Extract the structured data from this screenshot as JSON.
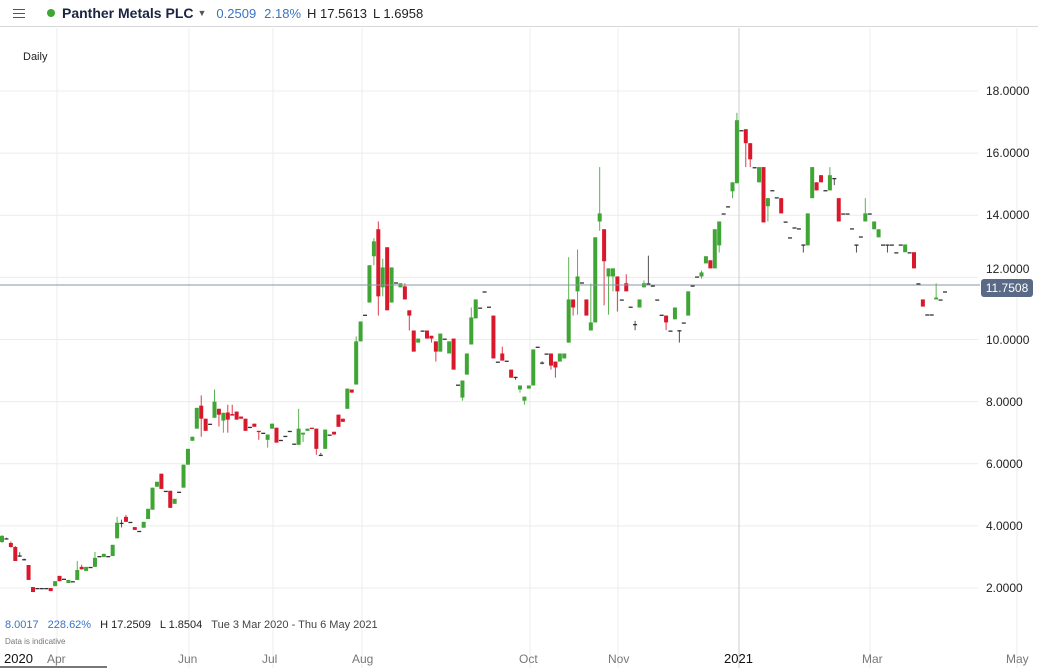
{
  "header": {
    "menu_icon": "hamburger-icon",
    "status_color": "#3fa535",
    "instrument": "Panther Metals PLC",
    "change": "0.2509",
    "change_pct": "2.18%",
    "high": "H 17.5613",
    "low": "L 1.6958"
  },
  "period": "Daily",
  "current_price": "11.7508",
  "footer": {
    "change": "8.0017",
    "change_pct": "228.62%",
    "high": "H 17.2509",
    "low": "L 1.8504",
    "range": "Tue 3 Mar 2020 - Thu 6 May 2021",
    "note": "Data is indicative"
  },
  "x_axis": [
    "2020",
    "Apr",
    "Jun",
    "Jul",
    "Aug",
    "Oct",
    "Nov",
    "2021",
    "Mar",
    "May"
  ],
  "y_axis": [
    "18.0000",
    "16.0000",
    "14.0000",
    "12.0000",
    "10.0000",
    "8.0000",
    "6.0000",
    "4.0000",
    "2.0000"
  ],
  "chart_data": {
    "type": "candlestick",
    "title": "",
    "ylim": [
      2,
      18
    ],
    "x_range": [
      "2020-03-03",
      "2021-05-06"
    ],
    "grid": true,
    "current_price": 11.7508,
    "colors": {
      "up": "#3fa535",
      "down": "#d9182c",
      "flat": "#333333",
      "price_line": "#8a96a8"
    },
    "candles_ohlc": [
      [
        3.48,
        3.7,
        3.45,
        3.68
      ],
      [
        3.6,
        3.62,
        3.58,
        3.6
      ],
      [
        3.45,
        3.5,
        3.3,
        3.32
      ],
      [
        3.32,
        3.35,
        2.87,
        2.87
      ],
      [
        3.05,
        3.15,
        3.0,
        3.05
      ],
      [
        2.93,
        2.95,
        2.9,
        2.93
      ],
      [
        2.74,
        2.74,
        2.26,
        2.26
      ],
      [
        2.03,
        2.03,
        1.87,
        1.87
      ],
      [
        2.0,
        2.0,
        2.0,
        2.0
      ],
      [
        2.0,
        2.0,
        2.0,
        2.0
      ],
      [
        2.0,
        2.0,
        2.0,
        2.0
      ],
      [
        2.0,
        2.0,
        1.9,
        1.9
      ],
      [
        2.06,
        2.22,
        2.06,
        2.22
      ],
      [
        2.39,
        2.39,
        2.22,
        2.22
      ],
      [
        2.3,
        2.3,
        2.3,
        2.3
      ],
      [
        2.16,
        2.26,
        2.16,
        2.26
      ],
      [
        2.22,
        2.22,
        2.22,
        2.22
      ],
      [
        2.26,
        2.87,
        2.26,
        2.58
      ],
      [
        2.68,
        2.75,
        2.6,
        2.6
      ],
      [
        2.55,
        2.68,
        2.55,
        2.68
      ],
      [
        2.68,
        2.68,
        2.68,
        2.68
      ],
      [
        2.68,
        3.16,
        2.68,
        2.97
      ],
      [
        3.03,
        3.03,
        3.03,
        3.03
      ],
      [
        3.0,
        3.1,
        3.0,
        3.1
      ],
      [
        3.03,
        3.03,
        3.03,
        3.03
      ],
      [
        3.03,
        3.39,
        3.03,
        3.39
      ],
      [
        3.6,
        4.29,
        3.6,
        4.1
      ],
      [
        4.1,
        4.2,
        3.95,
        4.1
      ],
      [
        4.29,
        4.35,
        4.13,
        4.13
      ],
      [
        4.13,
        4.13,
        4.13,
        4.13
      ],
      [
        3.96,
        3.96,
        3.87,
        3.87
      ],
      [
        3.84,
        3.84,
        3.84,
        3.84
      ],
      [
        3.94,
        4.13,
        3.94,
        4.13
      ],
      [
        4.22,
        4.55,
        4.22,
        4.55
      ],
      [
        4.52,
        5.23,
        4.52,
        5.23
      ],
      [
        5.26,
        5.42,
        5.26,
        5.42
      ],
      [
        5.68,
        5.68,
        5.19,
        5.19
      ],
      [
        5.13,
        5.13,
        5.13,
        5.13
      ],
      [
        5.13,
        5.13,
        4.58,
        4.58
      ],
      [
        4.71,
        4.87,
        4.71,
        4.87
      ],
      [
        5.1,
        5.1,
        5.1,
        5.1
      ],
      [
        5.23,
        5.97,
        5.23,
        5.97
      ],
      [
        5.97,
        6.48,
        5.97,
        6.48
      ],
      [
        6.74,
        6.87,
        6.74,
        6.87
      ],
      [
        7.13,
        7.8,
        7.13,
        7.8
      ],
      [
        7.87,
        8.2,
        6.87,
        7.45
      ],
      [
        7.45,
        7.45,
        7.06,
        7.06
      ],
      [
        7.29,
        7.29,
        7.29,
        7.29
      ],
      [
        7.48,
        8.39,
        7.48,
        8.0
      ],
      [
        7.77,
        7.77,
        7.2,
        7.58
      ],
      [
        7.39,
        7.64,
        7.0,
        7.64
      ],
      [
        7.65,
        7.9,
        7.0,
        7.42
      ],
      [
        7.6,
        7.9,
        7.55,
        7.55
      ],
      [
        7.68,
        7.68,
        7.42,
        7.42
      ],
      [
        7.52,
        7.52,
        7.45,
        7.45
      ],
      [
        7.45,
        7.45,
        7.06,
        7.06
      ],
      [
        7.19,
        7.19,
        7.19,
        7.19
      ],
      [
        7.29,
        7.29,
        7.19,
        7.19
      ],
      [
        7.06,
        7.06,
        6.77,
        7.03
      ],
      [
        7.0,
        7.0,
        7.0,
        7.0
      ],
      [
        6.77,
        6.94,
        6.52,
        6.94
      ],
      [
        7.13,
        7.29,
        7.13,
        7.29
      ],
      [
        7.16,
        7.16,
        6.68,
        6.68
      ],
      [
        6.77,
        6.77,
        6.77,
        6.77
      ],
      [
        6.9,
        6.9,
        6.9,
        6.9
      ],
      [
        7.06,
        7.06,
        7.06,
        7.06
      ],
      [
        6.65,
        6.65,
        6.65,
        6.65
      ],
      [
        6.61,
        7.77,
        6.61,
        7.13
      ],
      [
        6.94,
        7.0,
        6.7,
        7.0
      ],
      [
        7.06,
        7.13,
        7.06,
        7.13
      ],
      [
        7.16,
        7.16,
        7.13,
        7.13
      ],
      [
        7.13,
        7.13,
        6.29,
        6.48
      ],
      [
        6.29,
        6.35,
        6.29,
        6.29
      ],
      [
        6.48,
        7.1,
        6.48,
        7.1
      ],
      [
        6.94,
        6.94,
        6.94,
        6.94
      ],
      [
        7.03,
        7.03,
        6.94,
        6.94
      ],
      [
        7.58,
        7.58,
        7.19,
        7.19
      ],
      [
        7.45,
        7.45,
        7.35,
        7.35
      ],
      [
        7.77,
        8.42,
        7.77,
        8.42
      ],
      [
        8.39,
        8.39,
        8.29,
        8.29
      ],
      [
        8.55,
        10.1,
        8.55,
        9.94
      ],
      [
        9.94,
        10.58,
        9.94,
        10.58
      ],
      [
        10.8,
        10.8,
        10.8,
        10.8
      ],
      [
        11.19,
        12.39,
        11.19,
        12.39
      ],
      [
        12.68,
        13.26,
        12.39,
        13.16
      ],
      [
        13.55,
        13.8,
        10.77,
        11.39
      ],
      [
        11.68,
        12.6,
        11.39,
        12.32
      ],
      [
        12.97,
        12.97,
        10.94,
        10.94
      ],
      [
        11.19,
        12.32,
        11.19,
        12.32
      ],
      [
        11.84,
        11.84,
        11.84,
        11.84
      ],
      [
        11.68,
        11.81,
        11.68,
        11.81
      ],
      [
        11.71,
        11.81,
        11.29,
        11.29
      ],
      [
        10.94,
        10.94,
        10.29,
        10.77
      ],
      [
        10.29,
        10.29,
        9.61,
        9.61
      ],
      [
        9.9,
        10.03,
        9.9,
        10.03
      ],
      [
        10.29,
        10.29,
        10.29,
        10.29
      ],
      [
        10.29,
        10.29,
        10.03,
        10.03
      ],
      [
        10.12,
        10.12,
        9.9,
        10.03
      ],
      [
        9.94,
        9.94,
        9.29,
        9.61
      ],
      [
        9.61,
        10.19,
        9.61,
        10.19
      ],
      [
        10.03,
        10.03,
        10.03,
        10.03
      ],
      [
        9.55,
        9.94,
        9.55,
        9.94
      ],
      [
        10.03,
        10.03,
        9.03,
        9.03
      ],
      [
        8.55,
        8.55,
        8.55,
        8.55
      ],
      [
        8.13,
        8.68,
        8.03,
        8.68
      ],
      [
        8.87,
        9.55,
        8.87,
        9.55
      ],
      [
        9.84,
        11.03,
        9.84,
        10.71
      ],
      [
        10.68,
        11.29,
        10.68,
        11.29
      ],
      [
        11.03,
        11.03,
        11.03,
        11.03
      ],
      [
        11.55,
        11.55,
        11.55,
        11.55
      ],
      [
        11.06,
        11.06,
        11.06,
        11.06
      ],
      [
        10.77,
        10.77,
        9.39,
        9.39
      ],
      [
        9.29,
        9.29,
        9.29,
        9.29
      ],
      [
        9.55,
        9.77,
        9.32,
        9.32
      ],
      [
        9.32,
        9.32,
        9.32,
        9.32
      ],
      [
        9.03,
        9.03,
        8.77,
        8.77
      ],
      [
        8.8,
        8.8,
        8.7,
        8.8
      ],
      [
        8.39,
        8.52,
        8.29,
        8.52
      ],
      [
        8.03,
        8.16,
        7.9,
        8.16
      ],
      [
        8.42,
        8.52,
        8.42,
        8.52
      ],
      [
        8.52,
        9.68,
        8.52,
        9.68
      ],
      [
        9.77,
        9.77,
        9.77,
        9.77
      ],
      [
        9.26,
        9.3,
        9.2,
        9.26
      ],
      [
        9.55,
        9.55,
        9.55,
        9.55
      ],
      [
        9.55,
        9.55,
        9.03,
        9.16
      ],
      [
        9.29,
        9.29,
        8.77,
        9.1
      ],
      [
        9.29,
        9.55,
        9.29,
        9.55
      ],
      [
        9.39,
        9.55,
        9.39,
        9.55
      ],
      [
        9.9,
        12.65,
        9.9,
        11.29
      ],
      [
        11.29,
        11.29,
        10.77,
        11.03
      ],
      [
        11.55,
        12.9,
        10.8,
        12.03
      ],
      [
        11.84,
        11.84,
        11.84,
        11.84
      ],
      [
        11.29,
        11.29,
        10.77,
        10.77
      ],
      [
        10.29,
        11.8,
        10.29,
        10.55
      ],
      [
        10.55,
        13.29,
        10.55,
        13.29
      ],
      [
        13.8,
        15.55,
        13.5,
        14.06
      ],
      [
        13.55,
        13.55,
        11.1,
        12.52
      ],
      [
        12.03,
        12.29,
        10.8,
        12.29
      ],
      [
        12.03,
        12.29,
        11.55,
        12.29
      ],
      [
        12.03,
        12.03,
        10.9,
        11.55
      ],
      [
        11.29,
        11.29,
        11.29,
        11.29
      ],
      [
        11.81,
        12.1,
        11.55,
        11.55
      ],
      [
        11.06,
        11.06,
        11.06,
        11.06
      ],
      [
        10.5,
        10.6,
        10.3,
        10.5
      ],
      [
        11.03,
        11.29,
        11.03,
        11.29
      ],
      [
        11.68,
        11.9,
        11.68,
        11.81
      ],
      [
        11.81,
        12.7,
        11.81,
        11.81
      ],
      [
        11.74,
        11.74,
        11.74,
        11.74
      ],
      [
        11.29,
        11.29,
        11.29,
        11.29
      ],
      [
        10.8,
        10.8,
        10.8,
        10.8
      ],
      [
        10.77,
        10.77,
        10.3,
        10.55
      ],
      [
        10.29,
        10.29,
        10.29,
        10.29
      ],
      [
        10.65,
        11.03,
        10.65,
        11.03
      ],
      [
        10.3,
        10.3,
        9.9,
        10.3
      ],
      [
        10.55,
        10.55,
        10.55,
        10.55
      ],
      [
        10.77,
        11.55,
        10.77,
        11.55
      ],
      [
        11.74,
        11.74,
        11.74,
        11.74
      ],
      [
        12.03,
        12.03,
        12.03,
        12.03
      ],
      [
        12.03,
        12.22,
        11.96,
        12.16
      ],
      [
        12.45,
        12.68,
        12.45,
        12.68
      ],
      [
        12.55,
        12.55,
        12.29,
        12.29
      ],
      [
        12.29,
        13.55,
        12.29,
        13.55
      ],
      [
        13.03,
        13.8,
        12.8,
        13.8
      ],
      [
        14.06,
        14.06,
        14.06,
        14.06
      ],
      [
        14.29,
        14.29,
        14.29,
        14.29
      ],
      [
        14.77,
        15.06,
        14.55,
        15.06
      ],
      [
        15.03,
        17.3,
        15.03,
        17.06
      ],
      [
        16.74,
        16.74,
        16.74,
        16.74
      ],
      [
        16.77,
        16.77,
        15.55,
        16.32
      ],
      [
        16.32,
        16.32,
        15.55,
        15.8
      ],
      [
        15.55,
        15.55,
        15.55,
        15.55
      ],
      [
        15.06,
        15.55,
        15.06,
        15.55
      ],
      [
        15.55,
        15.55,
        13.77,
        13.77
      ],
      [
        14.29,
        14.55,
        13.8,
        14.55
      ],
      [
        14.81,
        14.81,
        14.81,
        14.81
      ],
      [
        14.58,
        14.58,
        14.58,
        14.58
      ],
      [
        14.55,
        14.55,
        14.06,
        14.06
      ],
      [
        13.8,
        13.8,
        13.8,
        13.8
      ],
      [
        13.29,
        13.29,
        13.29,
        13.29
      ],
      [
        13.61,
        13.61,
        13.61,
        13.61
      ],
      [
        13.58,
        13.58,
        13.58,
        13.58
      ],
      [
        13.06,
        13.06,
        12.8,
        13.06
      ],
      [
        13.03,
        14.06,
        13.03,
        14.06
      ],
      [
        14.55,
        15.55,
        14.55,
        15.55
      ],
      [
        15.06,
        15.06,
        14.8,
        14.8
      ],
      [
        15.29,
        15.29,
        15.06,
        15.06
      ],
      [
        14.81,
        14.81,
        14.81,
        14.81
      ],
      [
        14.8,
        15.55,
        14.8,
        15.29
      ],
      [
        15.2,
        15.2,
        14.97,
        15.2
      ],
      [
        14.55,
        14.55,
        13.8,
        13.8
      ],
      [
        14.06,
        14.06,
        14.06,
        14.06
      ],
      [
        14.06,
        14.06,
        14.06,
        14.06
      ],
      [
        13.58,
        13.58,
        13.58,
        13.58
      ],
      [
        13.06,
        13.06,
        12.8,
        13.06
      ],
      [
        13.32,
        13.32,
        13.32,
        13.32
      ],
      [
        13.8,
        14.55,
        13.8,
        14.06
      ],
      [
        14.06,
        14.06,
        14.06,
        14.06
      ],
      [
        13.55,
        13.8,
        13.55,
        13.8
      ],
      [
        13.29,
        13.55,
        13.29,
        13.55
      ],
      [
        13.06,
        13.06,
        13.06,
        13.06
      ],
      [
        13.06,
        13.06,
        12.8,
        13.06
      ],
      [
        13.06,
        13.06,
        13.06,
        13.06
      ],
      [
        12.81,
        12.81,
        12.81,
        12.81
      ],
      [
        13.06,
        13.06,
        13.06,
        13.06
      ],
      [
        12.81,
        13.06,
        12.81,
        13.06
      ],
      [
        12.81,
        12.81,
        12.81,
        12.81
      ],
      [
        12.81,
        12.81,
        12.29,
        12.29
      ],
      [
        11.81,
        11.81,
        11.81,
        11.81
      ],
      [
        11.29,
        11.29,
        11.06,
        11.06
      ],
      [
        10.81,
        10.81,
        10.81,
        10.81
      ],
      [
        10.81,
        10.81,
        10.81,
        10.81
      ],
      [
        11.29,
        11.81,
        11.29,
        11.35
      ],
      [
        11.29,
        11.29,
        11.29,
        11.29
      ],
      [
        11.55,
        11.55,
        11.55,
        11.55
      ]
    ]
  }
}
